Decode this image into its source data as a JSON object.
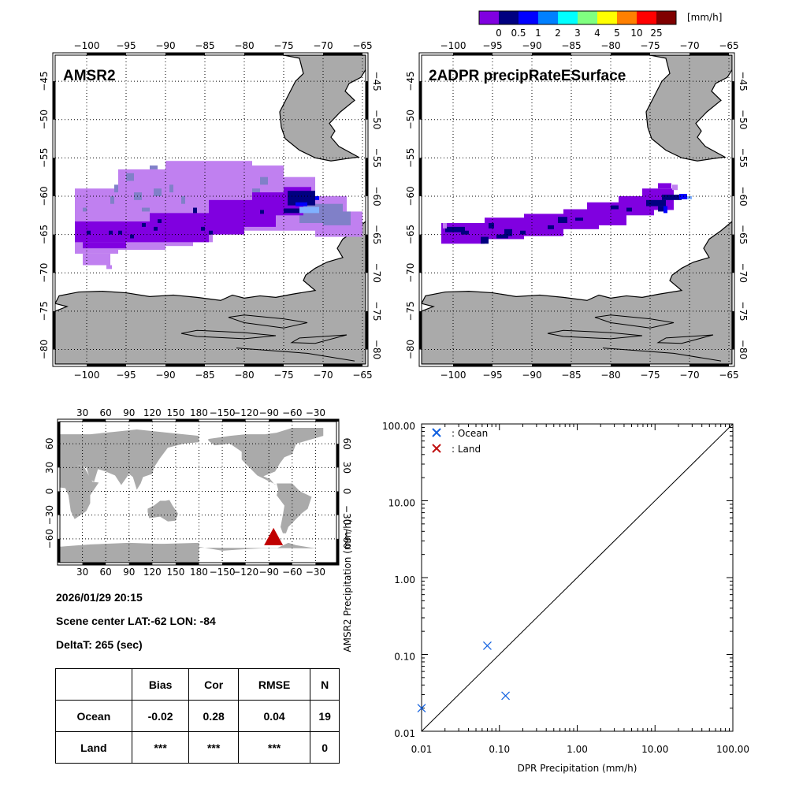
{
  "colorbar": {
    "unit": "[mm/h]",
    "colors": [
      "#8000e0",
      "#000080",
      "#0000ff",
      "#0080ff",
      "#00ffff",
      "#80ff80",
      "#ffff00",
      "#ff8000",
      "#ff0000",
      "#800000"
    ],
    "labels": [
      "0",
      "0.5",
      "1",
      "2",
      "3",
      "4",
      "5",
      "10",
      "25"
    ]
  },
  "maps": {
    "left": {
      "title": "AMSR2"
    },
    "right": {
      "title": "2ADPR precipRateESurface"
    },
    "lon_ticks": [
      "-100",
      "-95",
      "-90",
      "-85",
      "-80",
      "-75",
      "-70",
      "-65"
    ],
    "lat_ticks": [
      "-45",
      "-50",
      "-55",
      "-60",
      "-65",
      "-70",
      "-75",
      "-80"
    ],
    "lon_range": [
      -104,
      -64.6
    ],
    "lat_range": [
      -41.6,
      -81.9
    ],
    "land_color": "#aaaaaa",
    "swath_colors": {
      "light": "#c080f0",
      "grayblue": "#8080c8",
      "purple": "#8000e0",
      "navy": "#000080",
      "blue": "#0000ff",
      "skyblue": "#80b0ff"
    }
  },
  "globe": {
    "lon_ticks": [
      "30",
      "60",
      "90",
      "120",
      "150",
      "180",
      "-150",
      "-120",
      "-90",
      "-60",
      "-30"
    ],
    "lat_ticks": [
      "60",
      "30",
      "0",
      "-30",
      "-60"
    ],
    "marker": {
      "lat": -62,
      "lon": -84,
      "color": "#c00000"
    }
  },
  "info": {
    "datetime": "2026/01/29 20:15",
    "scene_center": "Scene center LAT:-62   LON: -84",
    "delta_t": "DeltaT:  265 (sec)"
  },
  "stats": {
    "headers": [
      "",
      "Bias",
      "Cor",
      "RMSE",
      "N"
    ],
    "rows": [
      [
        "Ocean",
        "-0.02",
        "0.28",
        "0.04",
        "19"
      ],
      [
        "Land",
        "***",
        "***",
        "***",
        "0"
      ]
    ]
  },
  "chart_data": {
    "type": "scatter",
    "title": "",
    "xlabel": "DPR Precipitation (mm/h)",
    "ylabel": "AMSR2 Precipitation (mm/h)",
    "xscale": "log",
    "yscale": "log",
    "xlim": [
      0.01,
      100
    ],
    "ylim": [
      0.01,
      100
    ],
    "x_tick_labels": [
      "0.01",
      "0.10",
      "1.00",
      "10.00",
      "100.00"
    ],
    "y_tick_labels": [
      "0.01",
      "0.10",
      "1.00",
      "10.00",
      "100.00"
    ],
    "legend": [
      {
        "label": ": Ocean",
        "color": "#1060e0"
      },
      {
        "label": ": Land",
        "color": "#c01010"
      }
    ],
    "legend_position": "top-left",
    "reference_line": "1:1",
    "series": [
      {
        "name": "Ocean",
        "color": "#1060e0",
        "points": [
          [
            0.01,
            0.02
          ],
          [
            0.07,
            0.13
          ],
          [
            0.12,
            0.029
          ]
        ]
      },
      {
        "name": "Land",
        "color": "#c01010",
        "points": []
      }
    ]
  }
}
